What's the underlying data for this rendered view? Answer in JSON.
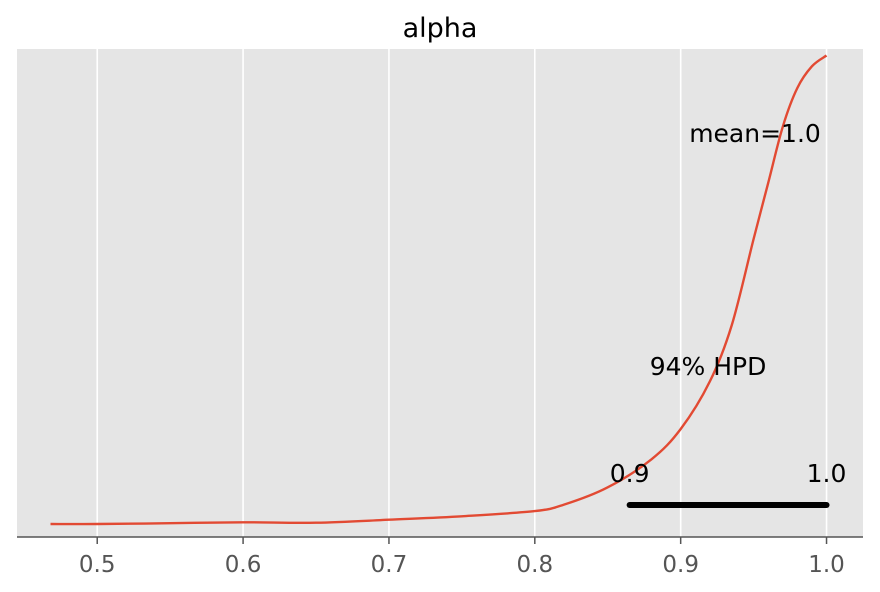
{
  "chart_data": {
    "type": "line",
    "title": "alpha",
    "xlabel": "",
    "ylabel": "",
    "xlim": [
      0.445,
      1.025
    ],
    "ylim": [
      -0.3,
      11.0
    ],
    "grid": "vertical",
    "x_ticks": [
      0.5,
      0.6,
      0.7,
      0.8,
      0.9,
      1.0
    ],
    "x_tick_labels": [
      "0.5",
      "0.6",
      "0.7",
      "0.8",
      "0.9",
      "1.0"
    ],
    "series": [
      {
        "x": [
          0.468,
          0.5,
          0.55,
          0.6,
          0.65,
          0.7,
          0.75,
          0.8,
          0.82,
          0.85,
          0.88,
          0.9,
          0.92,
          0.935,
          0.95,
          0.96,
          0.97,
          0.98,
          0.99,
          1.0
        ],
        "y": [
          0.0,
          0.0,
          0.02,
          0.04,
          0.03,
          0.1,
          0.18,
          0.3,
          0.45,
          0.85,
          1.5,
          2.2,
          3.3,
          4.6,
          6.6,
          7.9,
          9.2,
          10.1,
          10.6,
          10.85
        ]
      }
    ],
    "annotations": {
      "mean_label": "mean=1.0",
      "hpd_label": "94% HPD",
      "hpd_low_label": "0.9",
      "hpd_high_label": "1.0",
      "hpd_interval": [
        0.865,
        1.0
      ]
    },
    "colors": {
      "line": "#e24a33",
      "background": "#e5e5e5",
      "grid": "#ffffff",
      "hpd_bar": "#000000"
    }
  }
}
